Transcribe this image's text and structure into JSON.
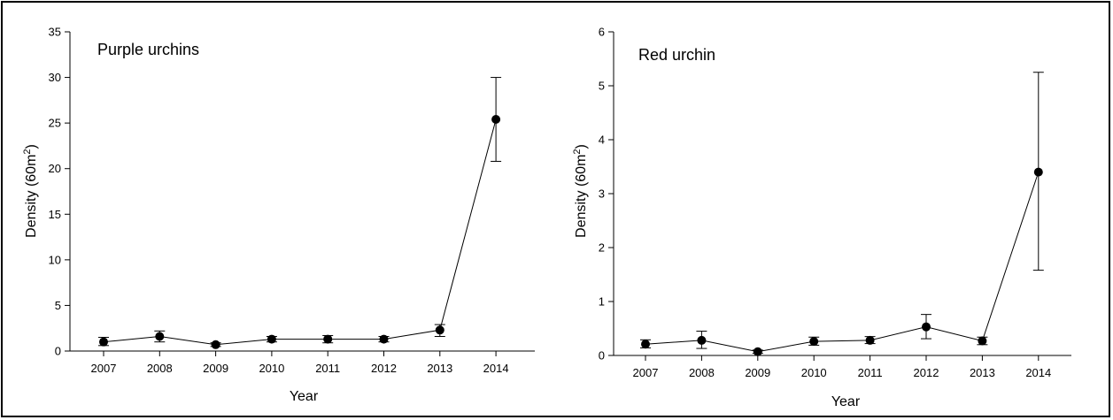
{
  "chart_data": [
    {
      "type": "line",
      "title": "Purple urchins",
      "xlabel": "Year",
      "ylabel": "Density (60m",
      "ylabel_sup": "2",
      "ylabel_close": ")",
      "categories": [
        "2007",
        "2008",
        "2009",
        "2010",
        "2011",
        "2012",
        "2013",
        "2014"
      ],
      "series": [
        {
          "values": [
            1.0,
            1.6,
            0.7,
            1.3,
            1.3,
            1.3,
            2.3,
            25.4
          ],
          "error_low": [
            0.6,
            1.0,
            0.5,
            1.0,
            0.9,
            1.0,
            1.6,
            20.8
          ],
          "error_high": [
            1.5,
            2.2,
            0.9,
            1.6,
            1.7,
            1.6,
            2.9,
            30.0
          ]
        }
      ],
      "ylim": [
        0,
        35
      ],
      "yticks": [
        0,
        5,
        10,
        15,
        20,
        25,
        30,
        35
      ],
      "grid": false,
      "marker": "filled-circle",
      "color": "#000000"
    },
    {
      "type": "line",
      "title": "Red urchin",
      "xlabel": "Year",
      "ylabel": "Density (60m",
      "ylabel_sup": "2",
      "ylabel_close": ")",
      "categories": [
        "2007",
        "2008",
        "2009",
        "2010",
        "2011",
        "2012",
        "2013",
        "2014"
      ],
      "series": [
        {
          "values": [
            0.21,
            0.28,
            0.07,
            0.26,
            0.28,
            0.53,
            0.27,
            3.4
          ],
          "error_low": [
            0.14,
            0.13,
            0.04,
            0.19,
            0.22,
            0.31,
            0.2,
            1.58
          ],
          "error_high": [
            0.29,
            0.45,
            0.1,
            0.34,
            0.35,
            0.76,
            0.34,
            5.25
          ]
        }
      ],
      "ylim": [
        0,
        6
      ],
      "yticks": [
        0,
        1,
        2,
        3,
        4,
        5,
        6
      ],
      "grid": false,
      "marker": "filled-circle",
      "color": "#000000"
    }
  ]
}
